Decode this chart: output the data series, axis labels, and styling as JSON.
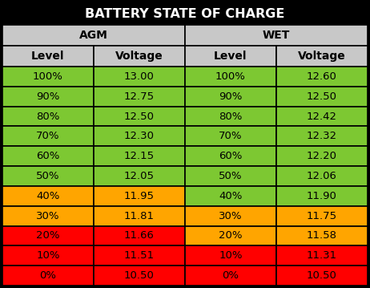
{
  "title": "BATTERY STATE OF CHARGE",
  "col_headers": [
    "AGM",
    "WET"
  ],
  "sub_headers": [
    "Level",
    "Voltage",
    "Level",
    "Voltage"
  ],
  "rows": [
    {
      "level": "100%",
      "agm_v": "13.00",
      "wet_l": "100%",
      "wet_v": "12.60",
      "agm_color": "#7DC832",
      "wet_color": "#7DC832"
    },
    {
      "level": "90%",
      "agm_v": "12.75",
      "wet_l": "90%",
      "wet_v": "12.50",
      "agm_color": "#7DC832",
      "wet_color": "#7DC832"
    },
    {
      "level": "80%",
      "agm_v": "12.50",
      "wet_l": "80%",
      "wet_v": "12.42",
      "agm_color": "#7DC832",
      "wet_color": "#7DC832"
    },
    {
      "level": "70%",
      "agm_v": "12.30",
      "wet_l": "70%",
      "wet_v": "12.32",
      "agm_color": "#7DC832",
      "wet_color": "#7DC832"
    },
    {
      "level": "60%",
      "agm_v": "12.15",
      "wet_l": "60%",
      "wet_v": "12.20",
      "agm_color": "#7DC832",
      "wet_color": "#7DC832"
    },
    {
      "level": "50%",
      "agm_v": "12.05",
      "wet_l": "50%",
      "wet_v": "12.06",
      "agm_color": "#7DC832",
      "wet_color": "#7DC832"
    },
    {
      "level": "40%",
      "agm_v": "11.95",
      "wet_l": "40%",
      "wet_v": "11.90",
      "agm_color": "#FFA500",
      "wet_color": "#7DC832"
    },
    {
      "level": "30%",
      "agm_v": "11.81",
      "wet_l": "30%",
      "wet_v": "11.75",
      "agm_color": "#FFA500",
      "wet_color": "#FFA500"
    },
    {
      "level": "20%",
      "agm_v": "11.66",
      "wet_l": "20%",
      "wet_v": "11.58",
      "agm_color": "#FF0000",
      "wet_color": "#FFA500"
    },
    {
      "level": "10%",
      "agm_v": "11.51",
      "wet_l": "10%",
      "wet_v": "11.31",
      "agm_color": "#FF0000",
      "wet_color": "#FF0000"
    },
    {
      "level": "0%",
      "agm_v": "10.50",
      "wet_l": "0%",
      "wet_v": "10.50",
      "agm_color": "#FF0000",
      "wet_color": "#FF0000"
    }
  ],
  "title_bg": "#000000",
  "title_color": "#FFFFFF",
  "header_bg": "#C8C8C8",
  "header_color": "#000000",
  "subheader_bg": "#C8C8C8",
  "subheader_color": "#000000",
  "border_color": "#000000",
  "title_fontsize": 11.5,
  "header_fontsize": 10,
  "cell_fontsize": 9.5
}
